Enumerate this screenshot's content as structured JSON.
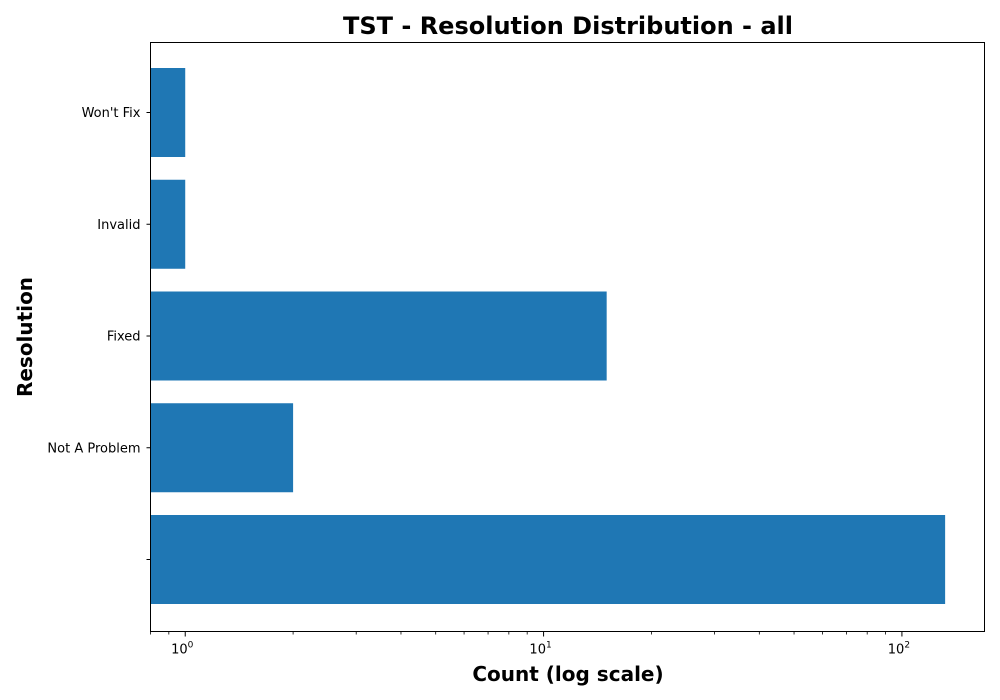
{
  "chart_data": {
    "type": "bar",
    "orientation": "horizontal",
    "title": "TST - Resolution Distribution - all",
    "xlabel": "Count (log scale)",
    "ylabel": "Resolution",
    "xscale": "log",
    "xlim": [
      0.8,
      170
    ],
    "x_ticks": [
      {
        "value": 1,
        "base": "10",
        "exp": "0"
      },
      {
        "value": 10,
        "base": "10",
        "exp": "1"
      },
      {
        "value": 100,
        "base": "10",
        "exp": "2"
      }
    ],
    "categories": [
      "",
      "Not A Problem",
      "Fixed",
      "Invalid",
      "Won't Fix"
    ],
    "values": [
      132,
      2,
      15,
      1,
      1
    ],
    "bar_color": "#1f77b4",
    "grid": false,
    "legend": "none"
  }
}
